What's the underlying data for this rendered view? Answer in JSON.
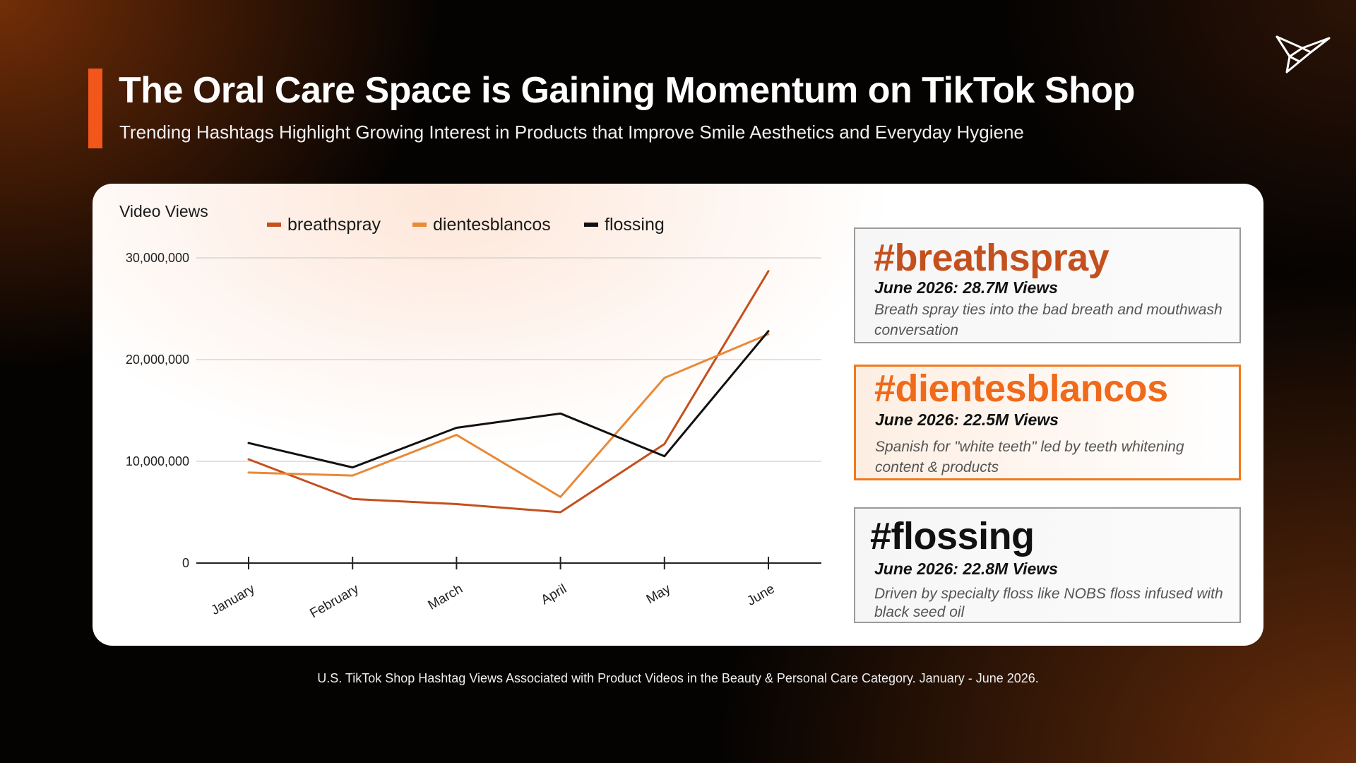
{
  "header": {
    "title": "The Oral Care Space is Gaining Momentum on TikTok Shop",
    "subtitle": "Trending Hashtags Highlight Growing Interest in Products that Improve Smile Aesthetics and Everyday Hygiene"
  },
  "colors": {
    "accent": "#f2561a",
    "breathspray": "#c4501e",
    "dientesblancos": "#e88a38",
    "flossing": "#111111"
  },
  "icons": {
    "logo": "paper-plane-bird-logo"
  },
  "chart_data": {
    "type": "line",
    "ylabel": "Video Views",
    "categories": [
      "January",
      "February",
      "March",
      "April",
      "May",
      "June"
    ],
    "ylim": [
      0,
      30000000
    ],
    "yticks": [
      0,
      10000000,
      20000000,
      30000000
    ],
    "ytick_labels": [
      "0",
      "10,000,000",
      "20,000,000",
      "30,000,000"
    ],
    "grid": true,
    "legend_position": "top",
    "series": [
      {
        "name": "breathspray",
        "color": "#c4501e",
        "values": [
          10200000,
          6300000,
          5800000,
          5000000,
          11700000,
          28700000
        ]
      },
      {
        "name": "dientesblancos",
        "color": "#e88a38",
        "values": [
          8900000,
          8600000,
          12600000,
          6500000,
          18200000,
          22500000
        ]
      },
      {
        "name": "flossing",
        "color": "#111111",
        "values": [
          11800000,
          9400000,
          13300000,
          14700000,
          10500000,
          22800000
        ]
      }
    ]
  },
  "callouts": [
    {
      "tag": "#breathspray",
      "stat": "June 2026: 28.7M  Views",
      "description": "Breath spray ties into the bad breath and mouthwash conversation",
      "color": "#c4501e"
    },
    {
      "tag": "#dientesblancos",
      "stat": "June 2026: 22.5M  Views",
      "description": "Spanish for \"white teeth\" led by teeth whitening content & products",
      "color": "#ef6a1a"
    },
    {
      "tag": "#flossing",
      "stat": "June 2026: 22.8M  Views",
      "description": "Driven by specialty floss like NOBS floss infused with black seed oil",
      "color": "#111111"
    }
  ],
  "footnote": "U.S. TikTok Shop Hashtag Views Associated with Product Videos in the Beauty & Personal Care Category. January - June 2026."
}
